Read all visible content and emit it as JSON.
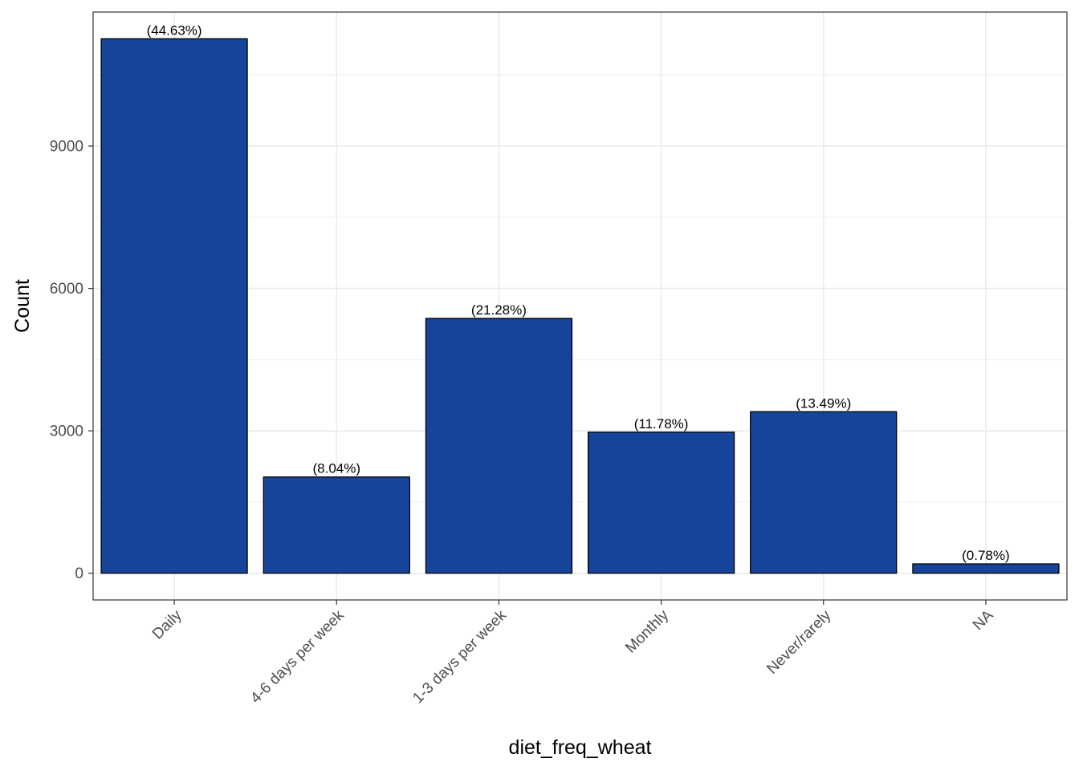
{
  "chart_data": {
    "type": "bar",
    "title": "",
    "xlabel": "diet_freq_wheat",
    "ylabel": "Count",
    "categories": [
      "Daily",
      "4-6 days per week",
      "1-3 days per week",
      "Monthly",
      "Never/rarely",
      "NA"
    ],
    "values": [
      11260,
      2028,
      5369,
      2972,
      3403,
      197
    ],
    "data_labels": [
      "(44.63%)",
      "(8.04%)",
      "(21.28%)",
      "(11.78%)",
      "(13.49%)",
      "(0.78%)"
    ],
    "yticks": [
      0,
      3000,
      6000,
      9000
    ],
    "ytick_labels": [
      "0",
      "3000",
      "6000",
      "9000"
    ],
    "ylim": [
      -563,
      11823
    ],
    "grid": true,
    "legend": "none",
    "x_tick_rotation": "45 degrees",
    "colors": {
      "bar_fill": "#17449b",
      "bar_stroke": "#000000",
      "grid": "#ebebeb",
      "panel_border": "#333333",
      "background": "#ffffff"
    }
  }
}
